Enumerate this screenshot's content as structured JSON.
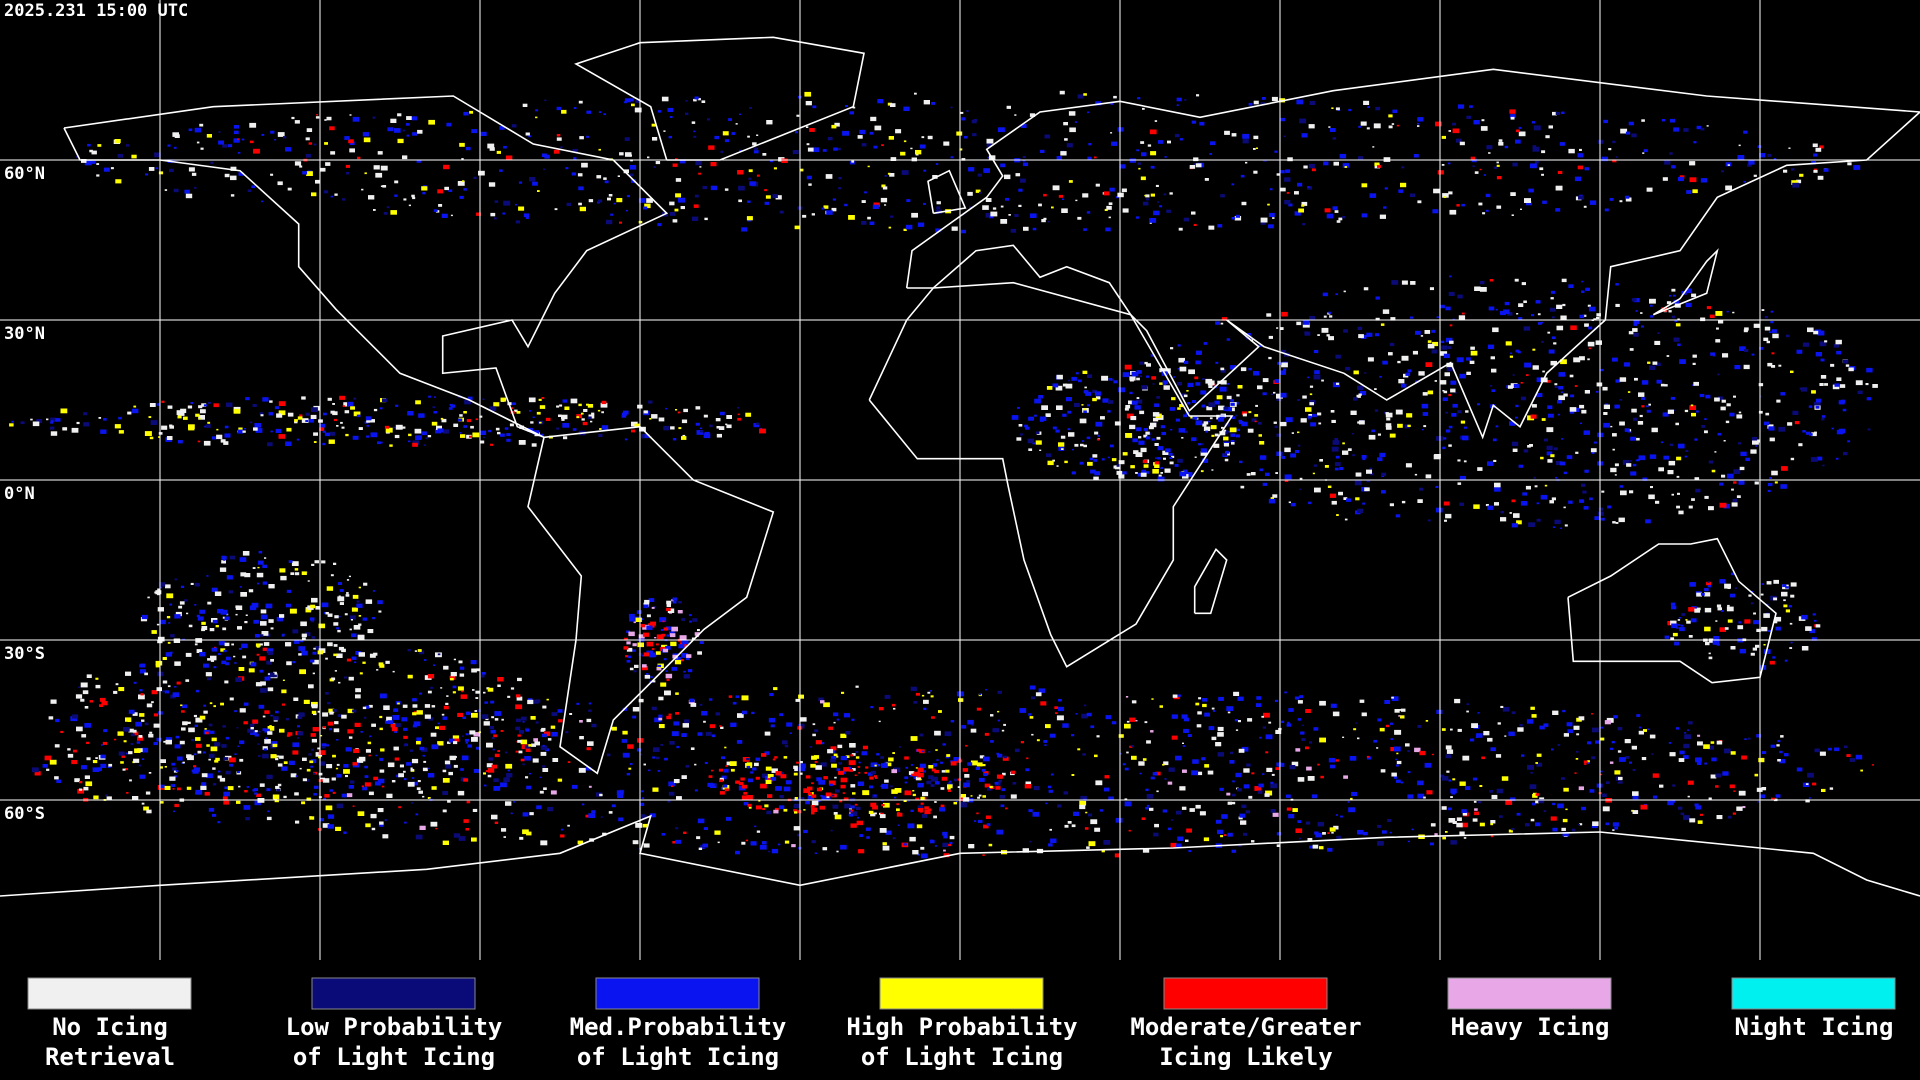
{
  "timestamp": "2025.231 15:00 UTC",
  "map": {
    "latitude_labels": [
      "60°N",
      "30°N",
      "0°N",
      "30°S",
      "60°S"
    ]
  },
  "legend": [
    {
      "label_lines": [
        "No Icing",
        "Retrieval"
      ],
      "color": "#f0f0f0"
    },
    {
      "label_lines": [
        "Low Probability",
        "of Light Icing"
      ],
      "color": "#0a0a78"
    },
    {
      "label_lines": [
        "Med.Probability",
        "of Light Icing"
      ],
      "color": "#0a14f0"
    },
    {
      "label_lines": [
        "High Probability",
        "of Light Icing"
      ],
      "color": "#ffff00"
    },
    {
      "label_lines": [
        "Moderate/Greater",
        "Icing Likely"
      ],
      "color": "#ff0000"
    },
    {
      "label_lines": [
        "Heavy Icing"
      ],
      "color": "#e8a8e8"
    },
    {
      "label_lines": [
        "Night Icing"
      ],
      "color": "#00f0f0"
    }
  ]
}
